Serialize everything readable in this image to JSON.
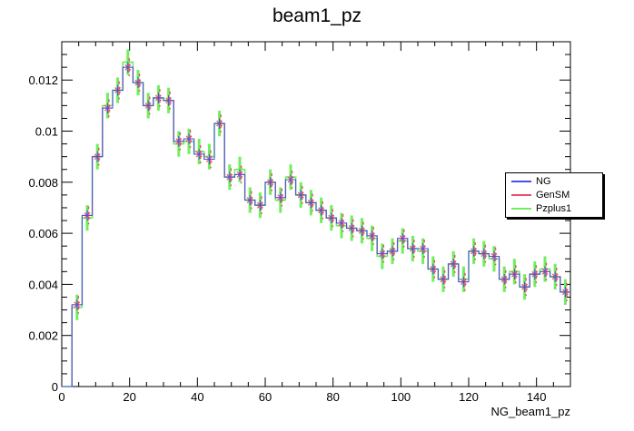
{
  "chart_data": {
    "type": "line",
    "title": "beam1_pz",
    "xlabel": "NG_beam1_pz",
    "ylabel": "",
    "xlim": [
      0,
      150
    ],
    "ylim": [
      0,
      0.0135
    ],
    "grid": false,
    "legend_position": "right",
    "x_ticks": [
      "0",
      "20",
      "40",
      "60",
      "80",
      "100",
      "120",
      "140"
    ],
    "y_ticks": [
      "0",
      "0.002",
      "0.004",
      "0.006",
      "0.008",
      "0.01",
      "0.012"
    ],
    "bin_edges_start": 0,
    "bin_width": 3,
    "series": [
      {
        "name": "NG",
        "color": "#4a4af0",
        "values": [
          0.0,
          0.0032,
          0.0067,
          0.009,
          0.0109,
          0.0116,
          0.0125,
          0.0119,
          0.011,
          0.0113,
          0.0112,
          0.0096,
          0.0097,
          0.0091,
          0.0089,
          0.0103,
          0.0082,
          0.0083,
          0.0073,
          0.0071,
          0.008,
          0.0074,
          0.0081,
          0.0075,
          0.0072,
          0.0069,
          0.0066,
          0.0064,
          0.0062,
          0.0061,
          0.0059,
          0.0052,
          0.0053,
          0.0058,
          0.0054,
          0.0054,
          0.0046,
          0.0042,
          0.0048,
          0.0041,
          0.0053,
          0.0052,
          0.0051,
          0.0042,
          0.0044,
          0.0039,
          0.0044,
          0.0045,
          0.0043,
          0.0037
        ]
      },
      {
        "name": "GenSM",
        "color": "#e8506a",
        "values": [
          0.0,
          0.0032,
          0.0067,
          0.009,
          0.0109,
          0.0116,
          0.0125,
          0.0119,
          0.011,
          0.0113,
          0.0112,
          0.0096,
          0.0097,
          0.0091,
          0.0089,
          0.0103,
          0.0082,
          0.0083,
          0.0073,
          0.0071,
          0.008,
          0.0074,
          0.0081,
          0.0075,
          0.0072,
          0.0069,
          0.0066,
          0.0064,
          0.0062,
          0.0061,
          0.0059,
          0.0052,
          0.0053,
          0.0058,
          0.0054,
          0.0054,
          0.0046,
          0.0042,
          0.0048,
          0.0041,
          0.0053,
          0.0052,
          0.0051,
          0.0042,
          0.0044,
          0.0039,
          0.0044,
          0.0045,
          0.0043,
          0.0037
        ]
      },
      {
        "name": "Pzplus1",
        "color": "#6ef05a",
        "values": [
          0.0,
          0.0031,
          0.0066,
          0.009,
          0.011,
          0.0116,
          0.0127,
          0.0119,
          0.011,
          0.0113,
          0.0112,
          0.0095,
          0.0096,
          0.0092,
          0.009,
          0.0103,
          0.0082,
          0.0085,
          0.0073,
          0.0071,
          0.008,
          0.0073,
          0.0082,
          0.0075,
          0.0072,
          0.0069,
          0.0066,
          0.0063,
          0.0062,
          0.0061,
          0.0058,
          0.0051,
          0.0053,
          0.0057,
          0.0054,
          0.0053,
          0.0046,
          0.0042,
          0.0048,
          0.0042,
          0.0053,
          0.0052,
          0.005,
          0.0042,
          0.0045,
          0.0039,
          0.0044,
          0.0046,
          0.0043,
          0.0037
        ]
      }
    ]
  }
}
